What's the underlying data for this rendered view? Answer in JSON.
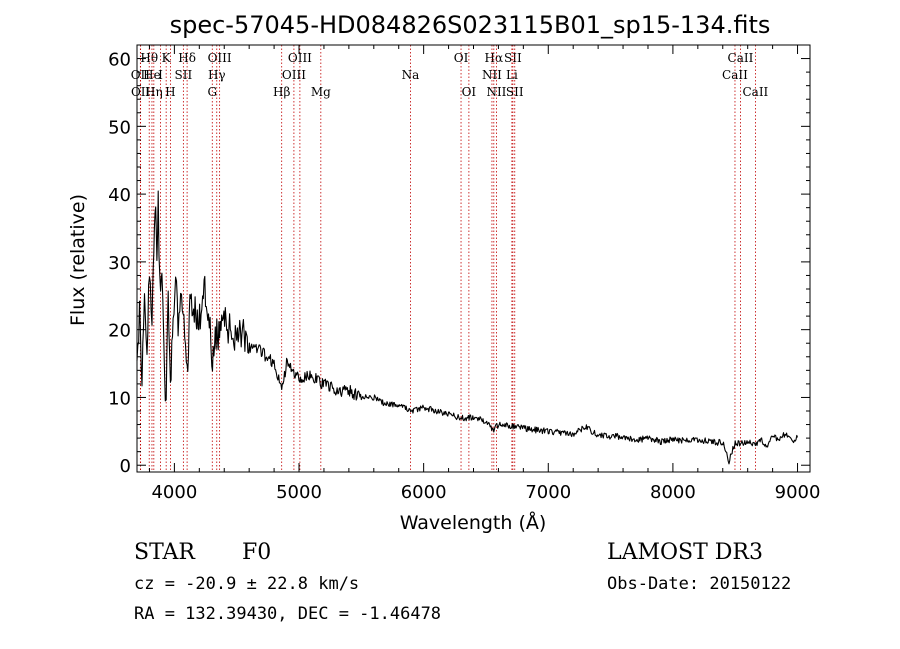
{
  "chart_data": {
    "type": "line",
    "title": "spec-57045-HD084826S023115B01_sp15-134.fits",
    "xlabel": "Wavelength (Å)",
    "ylabel": "Flux (relative)",
    "xlim": [
      3700,
      9100
    ],
    "ylim": [
      -1,
      62
    ],
    "xticks": [
      4000,
      5000,
      6000,
      7000,
      8000,
      9000
    ],
    "yticks": [
      0,
      10,
      20,
      30,
      40,
      50,
      60
    ],
    "x_tick_labels": [
      "4000",
      "5000",
      "6000",
      "7000",
      "8000",
      "9000"
    ],
    "y_tick_labels": [
      "0",
      "10",
      "20",
      "30",
      "40",
      "50",
      "60"
    ],
    "series": [
      {
        "name": "flux",
        "x": [
          3700,
          3720,
          3740,
          3760,
          3780,
          3800,
          3820,
          3835,
          3850,
          3860,
          3870,
          3889,
          3900,
          3920,
          3934,
          3950,
          3968,
          3990,
          4010,
          4030,
          4050,
          4070,
          4102,
          4130,
          4160,
          4190,
          4220,
          4250,
          4280,
          4300,
          4340,
          4380,
          4420,
          4460,
          4500,
          4560,
          4620,
          4680,
          4740,
          4800,
          4861,
          4900,
          4950,
          5000,
          5100,
          5200,
          5300,
          5400,
          5500,
          5600,
          5700,
          5800,
          5890,
          6000,
          6100,
          6200,
          6300,
          6400,
          6500,
          6563,
          6600,
          6700,
          6800,
          6900,
          7000,
          7100,
          7200,
          7300,
          7400,
          7500,
          7600,
          7700,
          7800,
          7900,
          8000,
          8100,
          8200,
          8300,
          8400,
          8450,
          8500,
          8542,
          8600,
          8662,
          8700,
          8760,
          8800,
          8850,
          8900,
          8950,
          9000
        ],
        "y": [
          18,
          22,
          14,
          25,
          17,
          28,
          20,
          33,
          39,
          30,
          38,
          24,
          30,
          12,
          8,
          26,
          10,
          22,
          27,
          20,
          24,
          22,
          14,
          25,
          23,
          21,
          23,
          26,
          22,
          15,
          19,
          21,
          21,
          19,
          20,
          19,
          17,
          17,
          16,
          15,
          11,
          15,
          14,
          13,
          13,
          12,
          11,
          11,
          10,
          10,
          9,
          9,
          8,
          8.5,
          8,
          7.5,
          7,
          7,
          6.5,
          5.2,
          6,
          5.8,
          5.5,
          5.2,
          5,
          4.8,
          4.6,
          5.6,
          4.4,
          4.2,
          4.3,
          3.6,
          4.1,
          3.5,
          3.8,
          3.6,
          3.7,
          3.5,
          3.3,
          0.6,
          3.4,
          3.2,
          3.6,
          3.1,
          3.8,
          2.8,
          4.2,
          3.9,
          4.6,
          3.5,
          4.1
        ]
      }
    ],
    "line_markers": [
      {
        "name": "OII",
        "x": 3727,
        "row": 2
      },
      {
        "name": "OII",
        "x": 3729,
        "row": 3
      },
      {
        "name": "Hθ",
        "x": 3798,
        "row": 1
      },
      {
        "name": "He",
        "x": 3820,
        "row": 2
      },
      {
        "name": "Hη",
        "x": 3835,
        "row": 3
      },
      {
        "name": "K",
        "x": 3934,
        "row": 1
      },
      {
        "name": "I",
        "x": 3889,
        "row": 2
      },
      {
        "name": "H",
        "x": 3968,
        "row": 3
      },
      {
        "name": "SII",
        "x": 4072,
        "row": 2
      },
      {
        "name": "Hδ",
        "x": 4102,
        "row": 1
      },
      {
        "name": "OIII",
        "x": 4363,
        "row": 1
      },
      {
        "name": "Hγ",
        "x": 4340,
        "row": 2
      },
      {
        "name": "G",
        "x": 4304,
        "row": 3
      },
      {
        "name": "Hβ",
        "x": 4861,
        "row": 3
      },
      {
        "name": "OIII",
        "x": 5007,
        "row": 1
      },
      {
        "name": "OIII",
        "x": 4959,
        "row": 2
      },
      {
        "name": "Mg",
        "x": 5175,
        "row": 3
      },
      {
        "name": "Na",
        "x": 5894,
        "row": 2
      },
      {
        "name": "OI",
        "x": 6300,
        "row": 1
      },
      {
        "name": "OI",
        "x": 6363,
        "row": 3
      },
      {
        "name": "Hα",
        "x": 6563,
        "row": 1
      },
      {
        "name": "SII",
        "x": 6716,
        "row": 1
      },
      {
        "name": "NII",
        "x": 6548,
        "row": 2
      },
      {
        "name": "Li",
        "x": 6708,
        "row": 2
      },
      {
        "name": "NII",
        "x": 6584,
        "row": 3
      },
      {
        "name": "SII",
        "x": 6731,
        "row": 3
      },
      {
        "name": "CaII",
        "x": 8542,
        "row": 1
      },
      {
        "name": "CaII",
        "x": 8498,
        "row": 2
      },
      {
        "name": "CaII",
        "x": 8662,
        "row": 3
      }
    ]
  },
  "info": {
    "object_type": "STAR",
    "subclass": "F0",
    "survey": "LAMOST DR3",
    "cz": "cz = -20.9 ± 22.8 km/s",
    "obs_date": "Obs-Date: 20150122",
    "coords": "RA = 132.39430, DEC =  -1.46478"
  },
  "colors": {
    "spectrum": "#000000",
    "marker": "#c00000",
    "axes": "#000000"
  }
}
